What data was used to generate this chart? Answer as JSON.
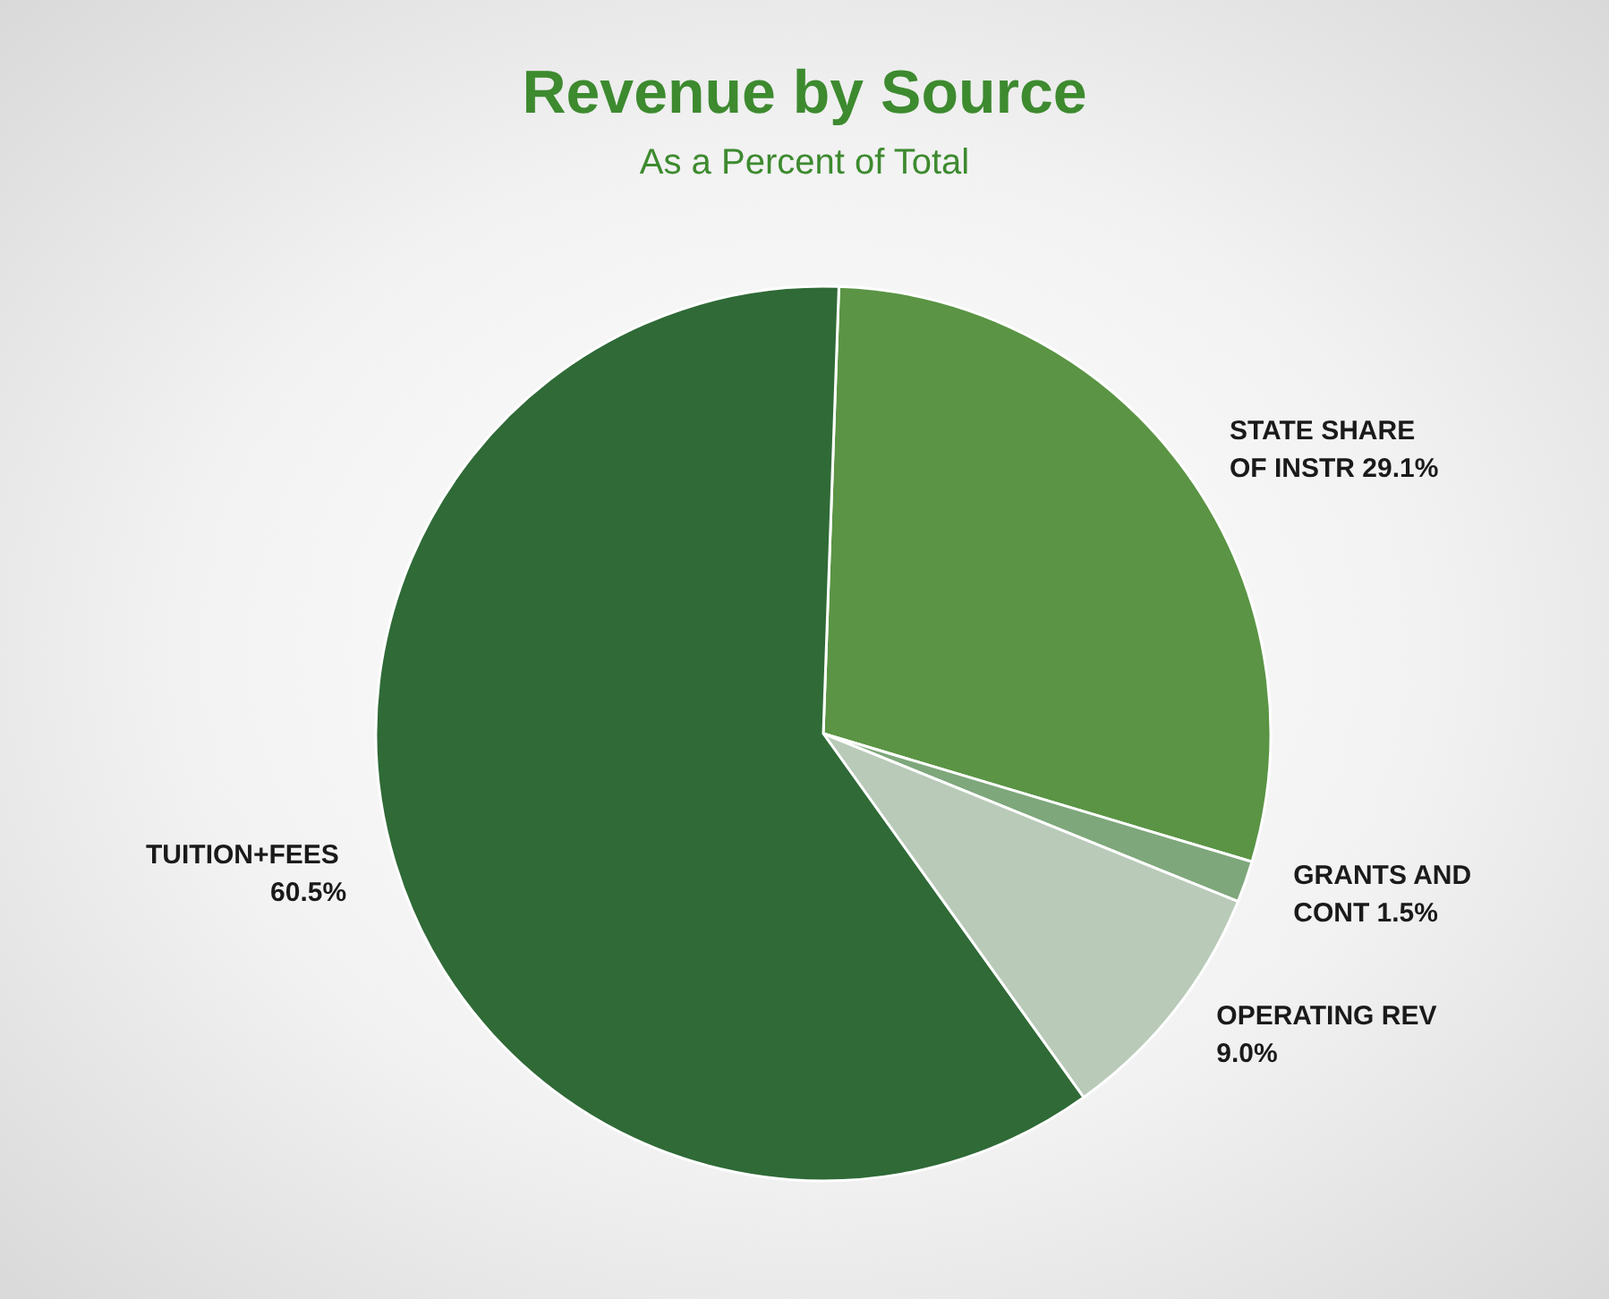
{
  "chart_data": {
    "type": "pie",
    "title": "Revenue by Source",
    "subtitle": "As a Percent of Total",
    "categories": [
      "STATE SHARE OF INSTR",
      "GRANTS AND CONT",
      "OPERATING REV",
      "TUITION+FEES"
    ],
    "values": [
      29.1,
      1.5,
      9.0,
      60.5
    ],
    "colors": [
      "#5a9444",
      "#7ea77b",
      "#b9cab9",
      "#2f6a37"
    ],
    "value_labels": [
      "29.1%",
      "1.5%",
      "9.0%",
      "60.5%"
    ],
    "legend": false
  }
}
